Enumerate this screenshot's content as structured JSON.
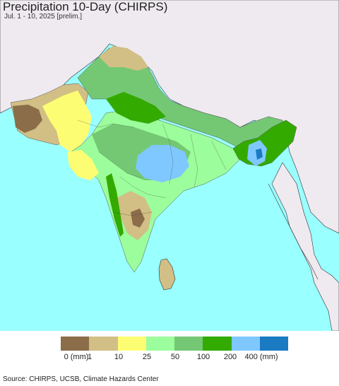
{
  "header": {
    "title": "Precipitation 10-Day (CHIRPS)",
    "date": "Jul. 1 - 10, 2025 [prelim.]"
  },
  "legend": {
    "colors": [
      "#8b6d4a",
      "#d2bf85",
      "#fdfd74",
      "#9cfd9c",
      "#74c874",
      "#33aa00",
      "#7fc8ff",
      "#1a7ac2"
    ],
    "labels": [
      "0 (mm)",
      "1",
      "10",
      "25",
      "50",
      "100",
      "200",
      "400 (mm)"
    ]
  },
  "colors": {
    "ocean": "#99ffff",
    "outside_land": "#efeaf0",
    "border": "#222222"
  },
  "footer": {
    "source": "Source: CHIRPS, UCSB, Climate Hazards Center"
  }
}
